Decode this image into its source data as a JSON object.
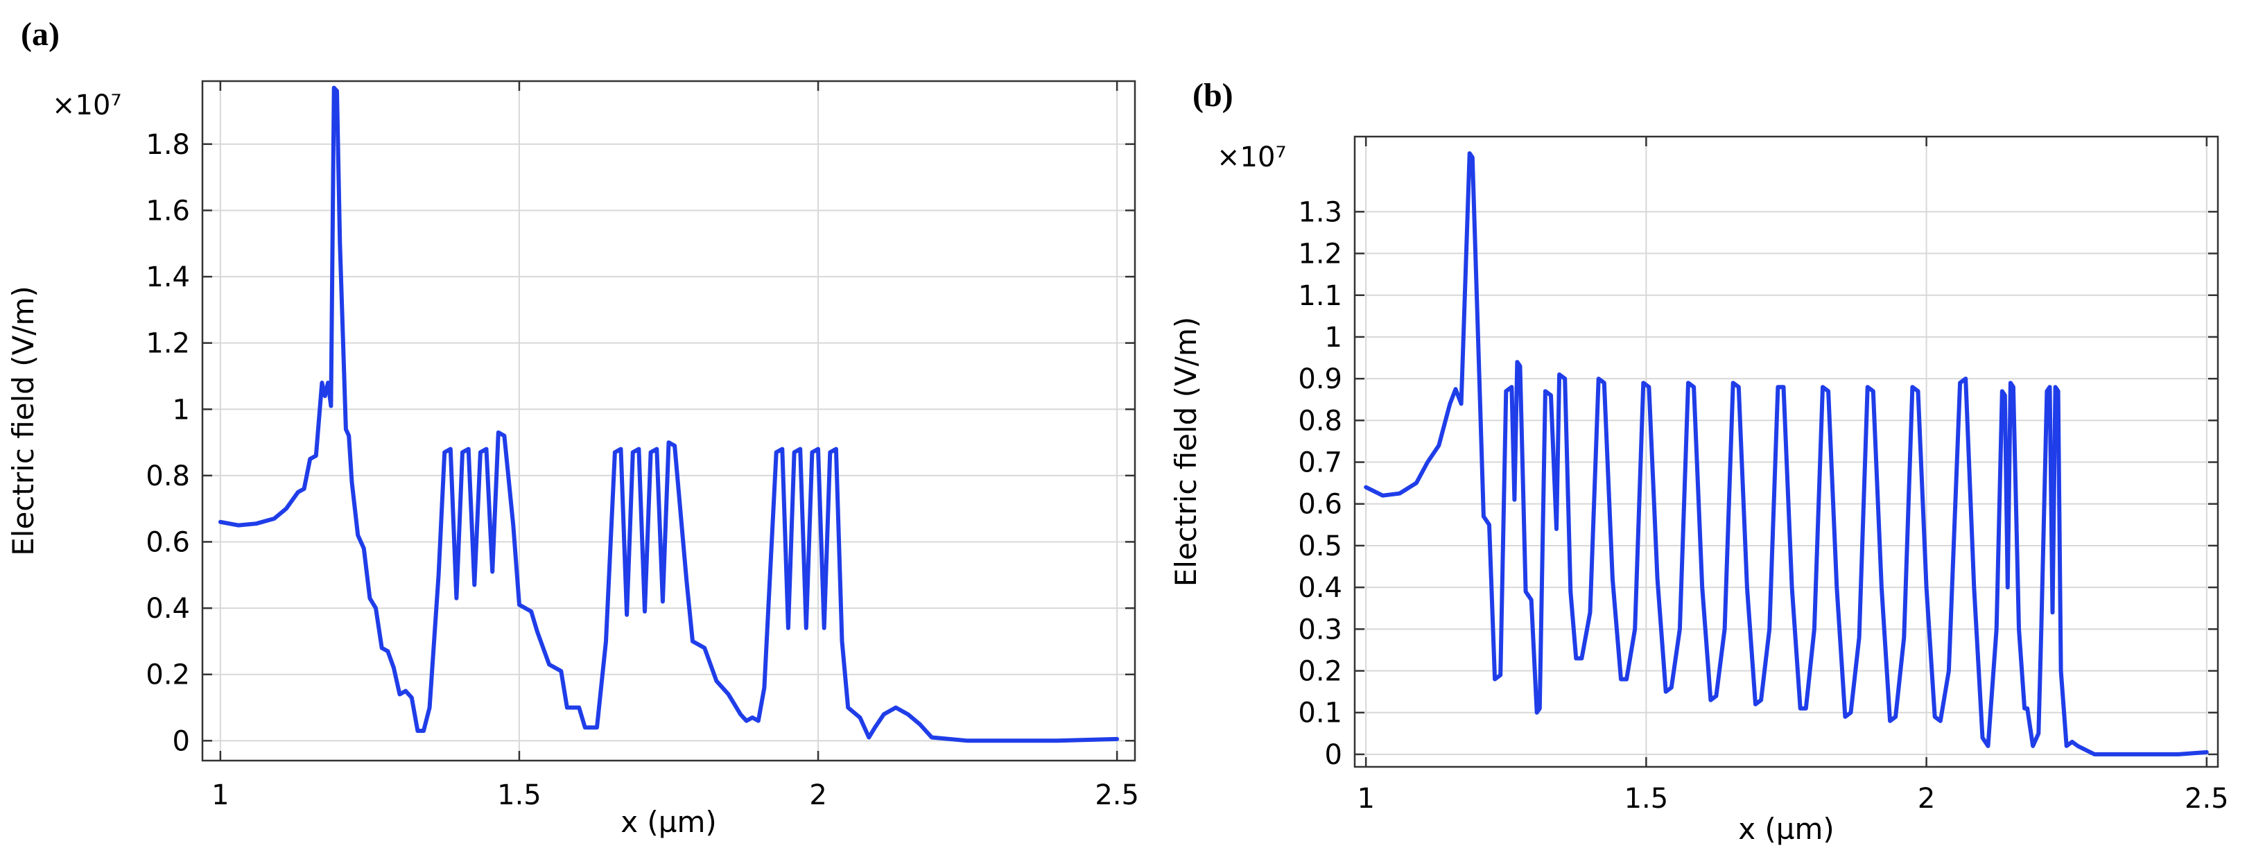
{
  "colors": {
    "line": "#1f3de8",
    "grid": "#d8d8d8",
    "axis": "#333333"
  },
  "chart_data": [
    {
      "panel": "(a)",
      "type": "line",
      "xlabel": "x (µm)",
      "ylabel": "Electric field (V/m)",
      "y_multiplier": "×10⁷",
      "xlim": [
        0.97,
        2.53
      ],
      "ylim": [
        -0.06,
        1.99
      ],
      "x_ticks": [
        1,
        1.5,
        2,
        2.5
      ],
      "x_tick_labels": [
        "1",
        "1.5",
        "2",
        "2.5"
      ],
      "y_ticks": [
        0,
        0.2,
        0.4,
        0.6,
        0.8,
        1,
        1.2,
        1.4,
        1.6,
        1.8
      ],
      "y_tick_labels": [
        "0",
        "0.2",
        "0.4",
        "0.6",
        "0.8",
        "1",
        "1.2",
        "1.4",
        "1.6",
        "1.8"
      ],
      "series": [
        {
          "name": "Electric field",
          "points": [
            [
              1.0,
              0.66
            ],
            [
              1.03,
              0.65
            ],
            [
              1.06,
              0.655
            ],
            [
              1.09,
              0.67
            ],
            [
              1.11,
              0.7
            ],
            [
              1.13,
              0.75
            ],
            [
              1.14,
              0.76
            ],
            [
              1.15,
              0.85
            ],
            [
              1.16,
              0.86
            ],
            [
              1.17,
              1.08
            ],
            [
              1.175,
              1.04
            ],
            [
              1.18,
              1.08
            ],
            [
              1.185,
              1.01
            ],
            [
              1.19,
              1.97
            ],
            [
              1.195,
              1.96
            ],
            [
              1.2,
              1.5
            ],
            [
              1.21,
              0.94
            ],
            [
              1.215,
              0.92
            ],
            [
              1.22,
              0.78
            ],
            [
              1.23,
              0.62
            ],
            [
              1.24,
              0.58
            ],
            [
              1.25,
              0.43
            ],
            [
              1.26,
              0.4
            ],
            [
              1.27,
              0.28
            ],
            [
              1.28,
              0.27
            ],
            [
              1.29,
              0.22
            ],
            [
              1.3,
              0.14
            ],
            [
              1.31,
              0.15
            ],
            [
              1.32,
              0.13
            ],
            [
              1.33,
              0.03
            ],
            [
              1.34,
              0.03
            ],
            [
              1.35,
              0.1
            ],
            [
              1.365,
              0.5
            ],
            [
              1.375,
              0.87
            ],
            [
              1.385,
              0.88
            ],
            [
              1.395,
              0.43
            ],
            [
              1.405,
              0.87
            ],
            [
              1.415,
              0.88
            ],
            [
              1.425,
              0.47
            ],
            [
              1.435,
              0.87
            ],
            [
              1.445,
              0.88
            ],
            [
              1.455,
              0.51
            ],
            [
              1.465,
              0.93
            ],
            [
              1.475,
              0.92
            ],
            [
              1.49,
              0.65
            ],
            [
              1.5,
              0.41
            ],
            [
              1.52,
              0.39
            ],
            [
              1.53,
              0.33
            ],
            [
              1.55,
              0.23
            ],
            [
              1.57,
              0.21
            ],
            [
              1.58,
              0.1
            ],
            [
              1.6,
              0.1
            ],
            [
              1.61,
              0.04
            ],
            [
              1.63,
              0.04
            ],
            [
              1.645,
              0.3
            ],
            [
              1.66,
              0.87
            ],
            [
              1.67,
              0.88
            ],
            [
              1.68,
              0.38
            ],
            [
              1.69,
              0.87
            ],
            [
              1.7,
              0.88
            ],
            [
              1.71,
              0.39
            ],
            [
              1.72,
              0.87
            ],
            [
              1.73,
              0.88
            ],
            [
              1.74,
              0.42
            ],
            [
              1.75,
              0.9
            ],
            [
              1.76,
              0.89
            ],
            [
              1.78,
              0.48
            ],
            [
              1.79,
              0.3
            ],
            [
              1.81,
              0.28
            ],
            [
              1.83,
              0.18
            ],
            [
              1.85,
              0.14
            ],
            [
              1.87,
              0.08
            ],
            [
              1.88,
              0.06
            ],
            [
              1.89,
              0.07
            ],
            [
              1.9,
              0.06
            ],
            [
              1.91,
              0.16
            ],
            [
              1.93,
              0.87
            ],
            [
              1.94,
              0.88
            ],
            [
              1.95,
              0.34
            ],
            [
              1.96,
              0.87
            ],
            [
              1.97,
              0.88
            ],
            [
              1.98,
              0.34
            ],
            [
              1.99,
              0.87
            ],
            [
              2.0,
              0.88
            ],
            [
              2.01,
              0.34
            ],
            [
              2.02,
              0.87
            ],
            [
              2.03,
              0.88
            ],
            [
              2.04,
              0.3
            ],
            [
              2.05,
              0.1
            ],
            [
              2.07,
              0.07
            ],
            [
              2.085,
              0.01
            ],
            [
              2.095,
              0.04
            ],
            [
              2.11,
              0.08
            ],
            [
              2.13,
              0.1
            ],
            [
              2.15,
              0.08
            ],
            [
              2.17,
              0.05
            ],
            [
              2.19,
              0.01
            ],
            [
              2.25,
              0.0
            ],
            [
              2.4,
              0.0
            ],
            [
              2.5,
              0.005
            ]
          ]
        }
      ]
    },
    {
      "panel": "(b)",
      "type": "line",
      "xlabel": "x (µm)",
      "ylabel": "Electric field (V/m)",
      "y_multiplier": "×10⁷",
      "xlim": [
        0.98,
        2.52
      ],
      "ylim": [
        -0.03,
        1.48
      ],
      "x_ticks": [
        1,
        1.5,
        2,
        2.5
      ],
      "x_tick_labels": [
        "1",
        "1.5",
        "2",
        "2.5"
      ],
      "y_ticks": [
        0,
        0.1,
        0.2,
        0.3,
        0.4,
        0.5,
        0.6,
        0.7,
        0.8,
        0.9,
        1,
        1.1,
        1.2,
        1.3
      ],
      "y_tick_labels": [
        "0",
        "0.1",
        "0.2",
        "0.3",
        "0.4",
        "0.5",
        "0.6",
        "0.7",
        "0.8",
        "0.9",
        "1",
        "1.1",
        "1.2",
        "1.3"
      ],
      "series": [
        {
          "name": "Electric field",
          "points": [
            [
              1.0,
              0.64
            ],
            [
              1.03,
              0.62
            ],
            [
              1.06,
              0.625
            ],
            [
              1.09,
              0.65
            ],
            [
              1.11,
              0.7
            ],
            [
              1.13,
              0.74
            ],
            [
              1.15,
              0.84
            ],
            [
              1.16,
              0.875
            ],
            [
              1.17,
              0.84
            ],
            [
              1.185,
              1.44
            ],
            [
              1.19,
              1.43
            ],
            [
              1.2,
              1.0
            ],
            [
              1.21,
              0.57
            ],
            [
              1.22,
              0.55
            ],
            [
              1.23,
              0.18
            ],
            [
              1.24,
              0.19
            ],
            [
              1.25,
              0.87
            ],
            [
              1.26,
              0.88
            ],
            [
              1.265,
              0.61
            ],
            [
              1.27,
              0.94
            ],
            [
              1.275,
              0.93
            ],
            [
              1.285,
              0.39
            ],
            [
              1.295,
              0.37
            ],
            [
              1.305,
              0.1
            ],
            [
              1.31,
              0.11
            ],
            [
              1.32,
              0.87
            ],
            [
              1.33,
              0.86
            ],
            [
              1.34,
              0.54
            ],
            [
              1.345,
              0.91
            ],
            [
              1.355,
              0.9
            ],
            [
              1.365,
              0.39
            ],
            [
              1.375,
              0.23
            ],
            [
              1.385,
              0.23
            ],
            [
              1.4,
              0.34
            ],
            [
              1.415,
              0.9
            ],
            [
              1.425,
              0.89
            ],
            [
              1.44,
              0.42
            ],
            [
              1.455,
              0.18
            ],
            [
              1.465,
              0.18
            ],
            [
              1.48,
              0.3
            ],
            [
              1.495,
              0.89
            ],
            [
              1.505,
              0.88
            ],
            [
              1.52,
              0.42
            ],
            [
              1.535,
              0.15
            ],
            [
              1.545,
              0.16
            ],
            [
              1.56,
              0.3
            ],
            [
              1.575,
              0.89
            ],
            [
              1.585,
              0.88
            ],
            [
              1.6,
              0.4
            ],
            [
              1.615,
              0.13
            ],
            [
              1.625,
              0.14
            ],
            [
              1.64,
              0.3
            ],
            [
              1.655,
              0.89
            ],
            [
              1.665,
              0.88
            ],
            [
              1.68,
              0.4
            ],
            [
              1.695,
              0.12
            ],
            [
              1.705,
              0.13
            ],
            [
              1.72,
              0.3
            ],
            [
              1.735,
              0.88
            ],
            [
              1.745,
              0.88
            ],
            [
              1.76,
              0.4
            ],
            [
              1.775,
              0.11
            ],
            [
              1.785,
              0.11
            ],
            [
              1.8,
              0.3
            ],
            [
              1.815,
              0.88
            ],
            [
              1.825,
              0.87
            ],
            [
              1.84,
              0.4
            ],
            [
              1.855,
              0.09
            ],
            [
              1.865,
              0.1
            ],
            [
              1.88,
              0.28
            ],
            [
              1.895,
              0.88
            ],
            [
              1.905,
              0.87
            ],
            [
              1.92,
              0.4
            ],
            [
              1.935,
              0.08
            ],
            [
              1.945,
              0.09
            ],
            [
              1.96,
              0.28
            ],
            [
              1.975,
              0.88
            ],
            [
              1.985,
              0.87
            ],
            [
              2.0,
              0.4
            ],
            [
              2.015,
              0.09
            ],
            [
              2.025,
              0.08
            ],
            [
              2.04,
              0.2
            ],
            [
              2.06,
              0.89
            ],
            [
              2.07,
              0.9
            ],
            [
              2.085,
              0.4
            ],
            [
              2.1,
              0.04
            ],
            [
              2.11,
              0.02
            ],
            [
              2.125,
              0.3
            ],
            [
              2.135,
              0.87
            ],
            [
              2.14,
              0.86
            ],
            [
              2.145,
              0.4
            ],
            [
              2.15,
              0.89
            ],
            [
              2.155,
              0.88
            ],
            [
              2.165,
              0.3
            ],
            [
              2.175,
              0.11
            ],
            [
              2.18,
              0.11
            ],
            [
              2.19,
              0.02
            ],
            [
              2.2,
              0.05
            ],
            [
              2.205,
              0.3
            ],
            [
              2.215,
              0.87
            ],
            [
              2.22,
              0.88
            ],
            [
              2.225,
              0.34
            ],
            [
              2.23,
              0.88
            ],
            [
              2.235,
              0.87
            ],
            [
              2.24,
              0.2
            ],
            [
              2.25,
              0.02
            ],
            [
              2.26,
              0.03
            ],
            [
              2.27,
              0.02
            ],
            [
              2.3,
              0.0
            ],
            [
              2.45,
              0.0
            ],
            [
              2.5,
              0.005
            ]
          ]
        }
      ]
    }
  ]
}
